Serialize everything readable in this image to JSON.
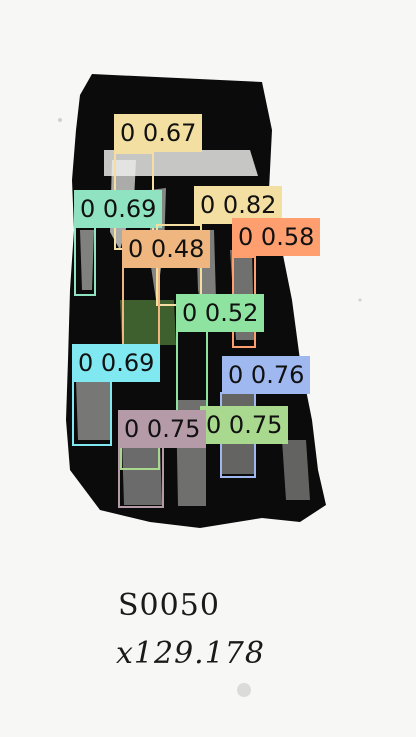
{
  "image": {
    "caption_id": "S0050",
    "caption_scale": "x129.178"
  },
  "detections": [
    {
      "label": "0",
      "score": "0.67",
      "color": "#f3dfa2"
    },
    {
      "label": "0",
      "score": "0.69",
      "color": "#8fe3c0"
    },
    {
      "label": "0",
      "score": "0.82",
      "color": "#f3dfa2"
    },
    {
      "label": "0",
      "score": "0.58",
      "color": "#ff9f70"
    },
    {
      "label": "0",
      "score": "0.48",
      "color": "#f0b67f"
    },
    {
      "label": "0",
      "score": "0.52",
      "color": "#8fe3a0"
    },
    {
      "label": "0",
      "score": "0.69",
      "color": "#7fe8f0"
    },
    {
      "label": "0",
      "score": "0.76",
      "color": "#9fb8f0"
    },
    {
      "label": "0",
      "score": "0.75",
      "color": "#a8d98f"
    },
    {
      "label": "0",
      "score": "0.75",
      "color": "#b59aa8"
    }
  ],
  "colors": {
    "artifact": "#0b0b0b",
    "paper": "#f7f7f5",
    "caption_text": "#1a1a1a"
  }
}
